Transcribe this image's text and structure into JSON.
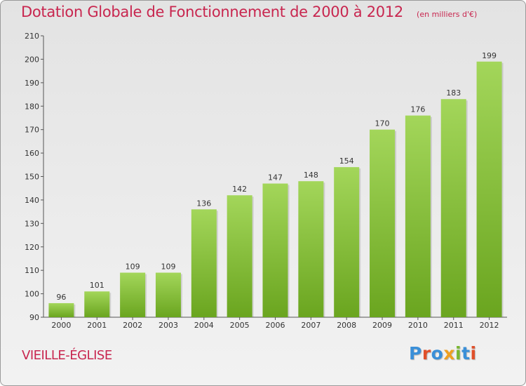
{
  "header": {
    "title": "Dotation Globale de Fonctionnement de 2000 à 2012",
    "subtitle": "(en milliers d'€)"
  },
  "footer": {
    "commune": "VIEILLE-ÉGLISE",
    "logo": {
      "text": "Proxiti",
      "colors": [
        "#3a8fd8",
        "#e0502a",
        "#3a8fd8",
        "#f0a020",
        "#7ab730",
        "#3a8fd8",
        "#e0502a"
      ]
    }
  },
  "chart_data": {
    "type": "bar",
    "categories": [
      "2000",
      "2001",
      "2002",
      "2003",
      "2004",
      "2005",
      "2006",
      "2007",
      "2008",
      "2009",
      "2010",
      "2011",
      "2012"
    ],
    "values": [
      96,
      101,
      109,
      109,
      136,
      142,
      147,
      148,
      154,
      170,
      176,
      183,
      199
    ],
    "title": "Dotation Globale de Fonctionnement de 2000 à 2012",
    "subtitle": "(en milliers d'€)",
    "xlabel": "",
    "ylabel": "",
    "ylim": [
      90,
      210
    ],
    "yticks": [
      90,
      100,
      110,
      120,
      130,
      140,
      150,
      160,
      170,
      180,
      190,
      200,
      210
    ],
    "grid": false,
    "colors": {
      "bar_light": "#a3d65a",
      "bar_dark": "#6aa51f",
      "axis": "#555555"
    }
  }
}
